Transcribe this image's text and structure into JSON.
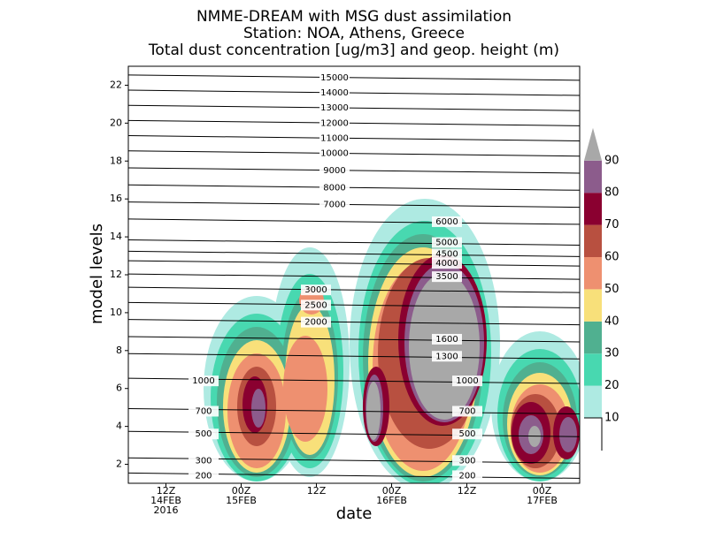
{
  "chart_data": {
    "type": "contour",
    "title": [
      "NMME-DREAM with MSG dust assimilation",
      "Station: NOA, Athens, Greece",
      "Total dust concentration [ug/m3] and geop. height (m)"
    ],
    "xlabel": "date",
    "ylabel": "model levels",
    "xlim": [
      6,
      78
    ],
    "xticks": [
      {
        "value": 12,
        "label": [
          "12Z",
          "14FEB",
          "2016"
        ]
      },
      {
        "value": 24,
        "label": [
          "00Z",
          "15FEB"
        ]
      },
      {
        "value": 36,
        "label": [
          "12Z"
        ]
      },
      {
        "value": 48,
        "label": [
          "00Z",
          "16FEB"
        ]
      },
      {
        "value": 60,
        "label": [
          "12Z"
        ]
      },
      {
        "value": 72,
        "label": [
          "00Z",
          "17FEB"
        ]
      }
    ],
    "ylim": [
      1,
      23
    ],
    "yticks": [
      2,
      4,
      6,
      8,
      10,
      12,
      14,
      16,
      18,
      20,
      22
    ],
    "colorbar": {
      "levels": [
        10,
        20,
        30,
        40,
        50,
        60,
        70,
        80,
        90
      ],
      "colors": [
        "#aeeae2",
        "#48d8b0",
        "#50b090",
        "#f8e07a",
        "#ee9070",
        "#b85040",
        "#8a0030",
        "#8c5c8c",
        "#a8a8a8"
      ]
    },
    "contours": [
      {
        "value": 15000,
        "level": 22.4
      },
      {
        "value": 14000,
        "level": 21.6
      },
      {
        "value": 13000,
        "level": 20.8
      },
      {
        "value": 12000,
        "level": 20.0
      },
      {
        "value": 11000,
        "level": 19.2
      },
      {
        "value": 10000,
        "level": 18.4
      },
      {
        "value": 9000,
        "level": 17.5
      },
      {
        "value": 8000,
        "level": 16.6
      },
      {
        "value": 7000,
        "level": 15.7
      },
      {
        "value": 6000,
        "level": 14.8
      },
      {
        "value": 5000,
        "level": 13.7
      },
      {
        "value": 4500,
        "level": 13.1
      },
      {
        "value": 4000,
        "level": 12.6
      },
      {
        "value": 3500,
        "level": 11.9
      },
      {
        "value": 3000,
        "level": 11.2
      },
      {
        "value": 2500,
        "level": 10.4
      },
      {
        "value": 2000,
        "level": 9.5
      },
      {
        "value": 1600,
        "level": 8.6
      },
      {
        "value": 1300,
        "level": 7.7
      },
      {
        "value": 1000,
        "level": 6.4
      },
      {
        "value": 700,
        "level": 4.8
      },
      {
        "value": 500,
        "level": 3.6
      },
      {
        "value": 300,
        "level": 2.2
      },
      {
        "value": 200,
        "level": 1.4
      }
    ]
  }
}
